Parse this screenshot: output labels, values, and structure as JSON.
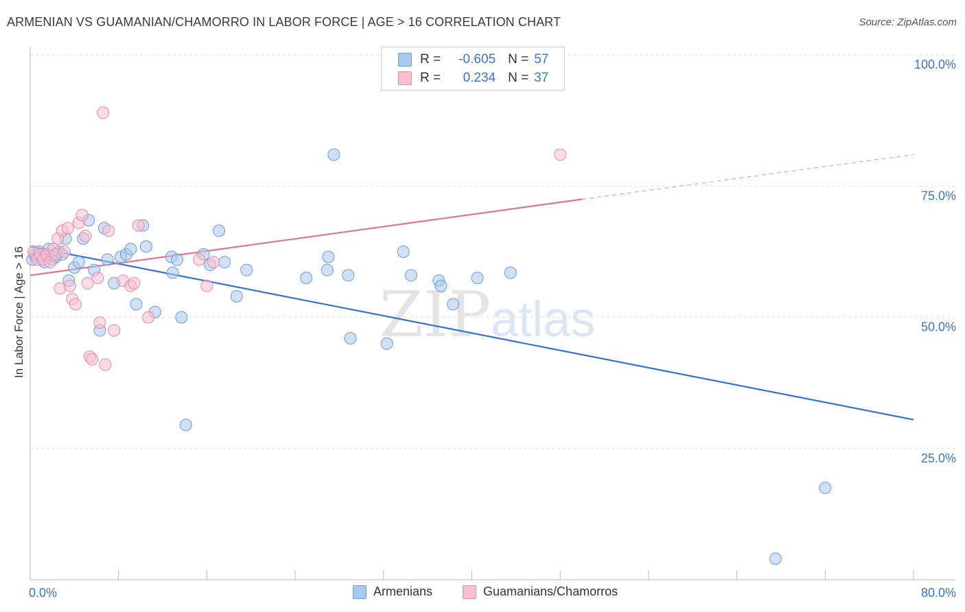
{
  "header": {
    "title": "ARMENIAN VS GUAMANIAN/CHAMORRO IN LABOR FORCE | AGE > 16 CORRELATION CHART",
    "source": "Source: ZipAtlas.com"
  },
  "watermark": {
    "zip": "ZIP",
    "atlas": "atlas"
  },
  "legend": {
    "rows": [
      {
        "r_label": "R =",
        "r_value": "-0.605",
        "n_label": "N =",
        "n_value": "57",
        "color": "#a9c8ee",
        "border": "#6a9bd8"
      },
      {
        "r_label": "R =",
        "r_value": "0.234",
        "n_label": "N =",
        "n_value": "37",
        "color": "#f7c0d0",
        "border": "#e88aa5"
      }
    ]
  },
  "bottom_legend": {
    "armenians": "Armenians",
    "guamanians": "Guamanians/Chamorros"
  },
  "colors": {
    "armenian_fill": "#a9c8ee",
    "armenian_stroke": "#6a9bd8",
    "armenian_line": "#2f72d0",
    "guam_fill": "#f7c0d0",
    "guam_stroke": "#e88aa5",
    "guam_line": "#e07098",
    "tick_label": "#3b73c9",
    "grid": "#dddddd"
  },
  "chart_data": {
    "type": "scatter",
    "title": "ARMENIAN VS GUAMANIAN/CHAMORRO IN LABOR FORCE | AGE > 16 CORRELATION CHART",
    "ylabel": "In Labor Force | Age > 16",
    "xlim": [
      0,
      80
    ],
    "ylim": [
      0,
      100
    ],
    "x_tick_labels": [
      "0.0%",
      "80.0%"
    ],
    "y_ticks": [
      25,
      50,
      75,
      100
    ],
    "y_tick_labels": [
      "25.0%",
      "50.0%",
      "75.0%",
      "100.0%"
    ],
    "grid": "horizontal dashed",
    "legend_placement": "top-center",
    "series": [
      {
        "name": "Armenians",
        "r": -0.605,
        "n": 57,
        "trend": {
          "x": [
            0,
            80
          ],
          "y": [
            63.5,
            30.5
          ]
        },
        "points": [
          [
            0.2,
            61.0
          ],
          [
            0.4,
            62.0
          ],
          [
            0.6,
            61.5
          ],
          [
            0.8,
            62.5
          ],
          [
            1.0,
            61.5
          ],
          [
            1.3,
            60.5
          ],
          [
            1.5,
            62.0
          ],
          [
            1.7,
            63.0
          ],
          [
            2.0,
            61.0
          ],
          [
            2.3,
            61.5
          ],
          [
            2.6,
            62.5
          ],
          [
            2.9,
            62.0
          ],
          [
            3.2,
            65.0
          ],
          [
            3.5,
            57.0
          ],
          [
            4.0,
            59.5
          ],
          [
            4.4,
            60.5
          ],
          [
            4.8,
            65.0
          ],
          [
            5.3,
            68.5
          ],
          [
            5.8,
            59.0
          ],
          [
            6.3,
            47.5
          ],
          [
            6.7,
            67.0
          ],
          [
            7.0,
            61.0
          ],
          [
            7.6,
            56.5
          ],
          [
            8.2,
            61.5
          ],
          [
            8.7,
            62.0
          ],
          [
            9.1,
            63.0
          ],
          [
            9.6,
            52.5
          ],
          [
            10.2,
            67.5
          ],
          [
            10.5,
            63.5
          ],
          [
            11.3,
            51.0
          ],
          [
            12.8,
            61.5
          ],
          [
            12.9,
            58.5
          ],
          [
            13.3,
            61.0
          ],
          [
            13.7,
            50.0
          ],
          [
            14.1,
            29.5
          ],
          [
            15.7,
            62.0
          ],
          [
            16.3,
            60.0
          ],
          [
            17.1,
            66.5
          ],
          [
            17.6,
            60.5
          ],
          [
            18.7,
            54.0
          ],
          [
            19.6,
            59.0
          ],
          [
            25.0,
            57.5
          ],
          [
            26.9,
            59.0
          ],
          [
            27.0,
            61.5
          ],
          [
            27.5,
            81.0
          ],
          [
            28.8,
            58.0
          ],
          [
            29.0,
            46.0
          ],
          [
            32.3,
            45.0
          ],
          [
            33.8,
            62.5
          ],
          [
            34.5,
            58.0
          ],
          [
            37.0,
            57.0
          ],
          [
            37.2,
            56.0
          ],
          [
            38.3,
            52.5
          ],
          [
            40.5,
            57.5
          ],
          [
            43.5,
            58.5
          ],
          [
            72.0,
            17.5
          ],
          [
            67.5,
            4.0
          ]
        ]
      },
      {
        "name": "Guamanians/Chamorros",
        "r": 0.234,
        "n": 37,
        "trend": {
          "x": [
            0,
            50
          ],
          "y": [
            58.0,
            72.5
          ]
        },
        "trend_extension": {
          "x": [
            50,
            80
          ],
          "y": [
            72.5,
            81.0
          ]
        },
        "points": [
          [
            0.3,
            62.5
          ],
          [
            0.6,
            61.0
          ],
          [
            0.9,
            62.0
          ],
          [
            1.2,
            61.0
          ],
          [
            1.5,
            62.0
          ],
          [
            1.8,
            60.5
          ],
          [
            2.1,
            63.0
          ],
          [
            2.3,
            62.0
          ],
          [
            2.5,
            65.0
          ],
          [
            2.7,
            55.5
          ],
          [
            2.9,
            66.5
          ],
          [
            3.1,
            62.5
          ],
          [
            3.4,
            67.0
          ],
          [
            3.6,
            56.0
          ],
          [
            3.8,
            53.5
          ],
          [
            4.1,
            52.5
          ],
          [
            4.4,
            68.0
          ],
          [
            4.7,
            69.5
          ],
          [
            5.0,
            65.5
          ],
          [
            5.2,
            56.5
          ],
          [
            5.4,
            42.5
          ],
          [
            5.6,
            42.0
          ],
          [
            6.1,
            57.5
          ],
          [
            6.3,
            49.0
          ],
          [
            6.6,
            89.0
          ],
          [
            6.8,
            41.0
          ],
          [
            7.1,
            66.5
          ],
          [
            7.6,
            47.5
          ],
          [
            8.4,
            57.0
          ],
          [
            9.1,
            56.0
          ],
          [
            9.4,
            56.5
          ],
          [
            9.8,
            67.5
          ],
          [
            10.7,
            50.0
          ],
          [
            15.3,
            61.0
          ],
          [
            16.0,
            56.0
          ],
          [
            16.6,
            60.5
          ],
          [
            48.0,
            81.0
          ]
        ]
      }
    ]
  }
}
